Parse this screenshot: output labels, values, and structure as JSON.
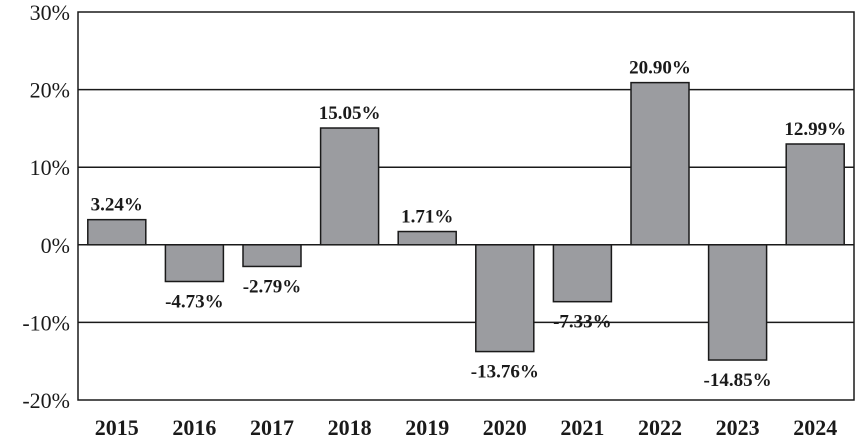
{
  "chart_data": {
    "type": "bar",
    "categories": [
      "2015",
      "2016",
      "2017",
      "2018",
      "2019",
      "2020",
      "2021",
      "2022",
      "2023",
      "2024"
    ],
    "values": [
      3.24,
      -4.73,
      -2.79,
      15.05,
      1.71,
      -13.76,
      -7.33,
      20.9,
      -14.85,
      12.99
    ],
    "data_labels": [
      "3.24%",
      "-4.73%",
      "-2.79%",
      "15.05%",
      "1.71%",
      "-13.76%",
      "-7.33%",
      "20.90%",
      "-14.85%",
      "12.99%"
    ],
    "y_ticks": [
      30,
      20,
      10,
      0,
      -10,
      -20
    ],
    "y_tick_labels": [
      "30%",
      "20%",
      "10%",
      "0%",
      "-10%",
      "-20%"
    ],
    "ylim": [
      -20,
      30
    ],
    "grid": true,
    "colors": {
      "bar_fill": "#9b9ca0",
      "bar_stroke": "#1a1a1a",
      "grid": "#1a1a1a",
      "axis": "#1a1a1a"
    }
  }
}
